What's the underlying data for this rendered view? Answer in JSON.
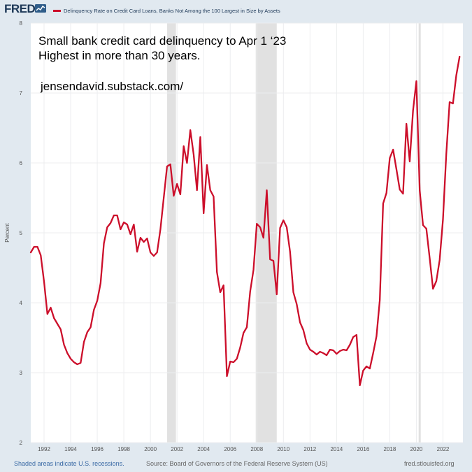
{
  "header": {
    "logo_text": "FRED",
    "legend_label": "Delinquency Rate on Credit Card Loans, Banks Not Among the 100 Largest in Size by Assets"
  },
  "annotations": {
    "line1": "Small bank credit card delinquency to Apr 1 ‘23",
    "line2": "Highest in more than 30 years.",
    "line3": "jensendavid.substack.com/"
  },
  "footer": {
    "recession_note": "Shaded areas indicate U.S. recessions.",
    "source": "Source: Board of Governors of the Federal Reserve System (US)",
    "site": "fred.stlouisfed.org"
  },
  "colors": {
    "series": "#cc0e2a",
    "recession": "#e1e1e1",
    "grid": "#ecedef"
  },
  "chart_data": {
    "type": "line",
    "xlabel": "",
    "ylabel": "Percent",
    "xlim": [
      1991.0,
      2023.5
    ],
    "ylim": [
      2,
      8
    ],
    "x_ticks": [
      1992,
      1994,
      1996,
      1998,
      2000,
      2002,
      2004,
      2006,
      2008,
      2010,
      2012,
      2014,
      2016,
      2018,
      2020,
      2022
    ],
    "x_tick_labels": [
      "1992",
      "1994",
      "1996",
      "1998",
      "2000",
      "2002",
      "2004",
      "2006",
      "2008",
      "2010",
      "2012",
      "2014",
      "2016",
      "2018",
      "2020",
      "2022"
    ],
    "y_ticks": [
      2,
      3,
      4,
      5,
      6,
      7,
      8
    ],
    "y_tick_labels": [
      "2",
      "3",
      "4",
      "5",
      "6",
      "7",
      "8"
    ],
    "grid": true,
    "recessions": [
      [
        2001.25,
        2001.92
      ],
      [
        2007.92,
        2009.5
      ],
      [
        2020.17,
        2020.33
      ]
    ],
    "series": [
      {
        "x": [
          1991.0,
          1991.25,
          1991.5,
          1991.75,
          1992.0,
          1992.25,
          1992.5,
          1992.75,
          1993.0,
          1993.25,
          1993.5,
          1993.75,
          1994.0,
          1994.25,
          1994.5,
          1994.75,
          1995.0,
          1995.25,
          1995.5,
          1995.75,
          1996.0,
          1996.25,
          1996.5,
          1996.75,
          1997.0,
          1997.25,
          1997.5,
          1997.75,
          1998.0,
          1998.25,
          1998.5,
          1998.75,
          1999.0,
          1999.25,
          1999.5,
          1999.75,
          2000.0,
          2000.25,
          2000.5,
          2000.75,
          2001.0,
          2001.25,
          2001.5,
          2001.75,
          2002.0,
          2002.25,
          2002.5,
          2002.75,
          2003.0,
          2003.25,
          2003.5,
          2003.75,
          2004.0,
          2004.25,
          2004.5,
          2004.75,
          2005.0,
          2005.25,
          2005.5,
          2005.75,
          2006.0,
          2006.25,
          2006.5,
          2006.75,
          2007.0,
          2007.25,
          2007.5,
          2007.75,
          2008.0,
          2008.25,
          2008.5,
          2008.75,
          2009.0,
          2009.25,
          2009.5,
          2009.75,
          2010.0,
          2010.25,
          2010.5,
          2010.75,
          2011.0,
          2011.25,
          2011.5,
          2011.75,
          2012.0,
          2012.25,
          2012.5,
          2012.75,
          2013.0,
          2013.25,
          2013.5,
          2013.75,
          2014.0,
          2014.25,
          2014.5,
          2014.75,
          2015.0,
          2015.25,
          2015.5,
          2015.75,
          2016.0,
          2016.25,
          2016.5,
          2016.75,
          2017.0,
          2017.25,
          2017.5,
          2017.75,
          2018.0,
          2018.25,
          2018.5,
          2018.75,
          2019.0,
          2019.25,
          2019.5,
          2019.75,
          2020.0,
          2020.25,
          2020.5,
          2020.75,
          2021.0,
          2021.25,
          2021.5,
          2021.75,
          2022.0,
          2022.25,
          2022.5,
          2022.75,
          2023.0,
          2023.25
        ],
        "y": [
          4.72,
          4.8,
          4.8,
          4.68,
          4.3,
          3.84,
          3.93,
          3.78,
          3.7,
          3.62,
          3.4,
          3.28,
          3.2,
          3.15,
          3.12,
          3.14,
          3.44,
          3.58,
          3.65,
          3.9,
          4.03,
          4.28,
          4.85,
          5.08,
          5.14,
          5.25,
          5.25,
          5.05,
          5.15,
          5.12,
          4.98,
          5.12,
          4.73,
          4.93,
          4.87,
          4.92,
          4.72,
          4.67,
          4.72,
          5.05,
          5.5,
          5.95,
          5.98,
          5.53,
          5.7,
          5.55,
          6.24,
          6.0,
          6.47,
          6.12,
          5.61,
          6.37,
          5.28,
          5.97,
          5.61,
          5.52,
          4.44,
          4.15,
          4.25,
          2.95,
          3.16,
          3.15,
          3.2,
          3.36,
          3.57,
          3.65,
          4.16,
          4.47,
          5.13,
          5.08,
          4.93,
          5.61,
          4.62,
          4.6,
          4.12,
          5.07,
          5.18,
          5.08,
          4.73,
          4.15,
          3.98,
          3.72,
          3.61,
          3.42,
          3.33,
          3.3,
          3.26,
          3.3,
          3.28,
          3.25,
          3.33,
          3.32,
          3.27,
          3.31,
          3.33,
          3.32,
          3.4,
          3.51,
          3.54,
          2.82,
          3.03,
          3.09,
          3.06,
          3.28,
          3.52,
          4.04,
          5.42,
          5.57,
          6.07,
          6.19,
          5.91,
          5.62,
          5.56,
          6.56,
          6.02,
          6.75,
          7.17,
          5.61,
          5.11,
          5.06,
          4.64,
          4.2,
          4.31,
          4.61,
          5.19,
          6.13,
          6.87,
          6.85,
          7.25,
          7.52
        ]
      }
    ]
  }
}
